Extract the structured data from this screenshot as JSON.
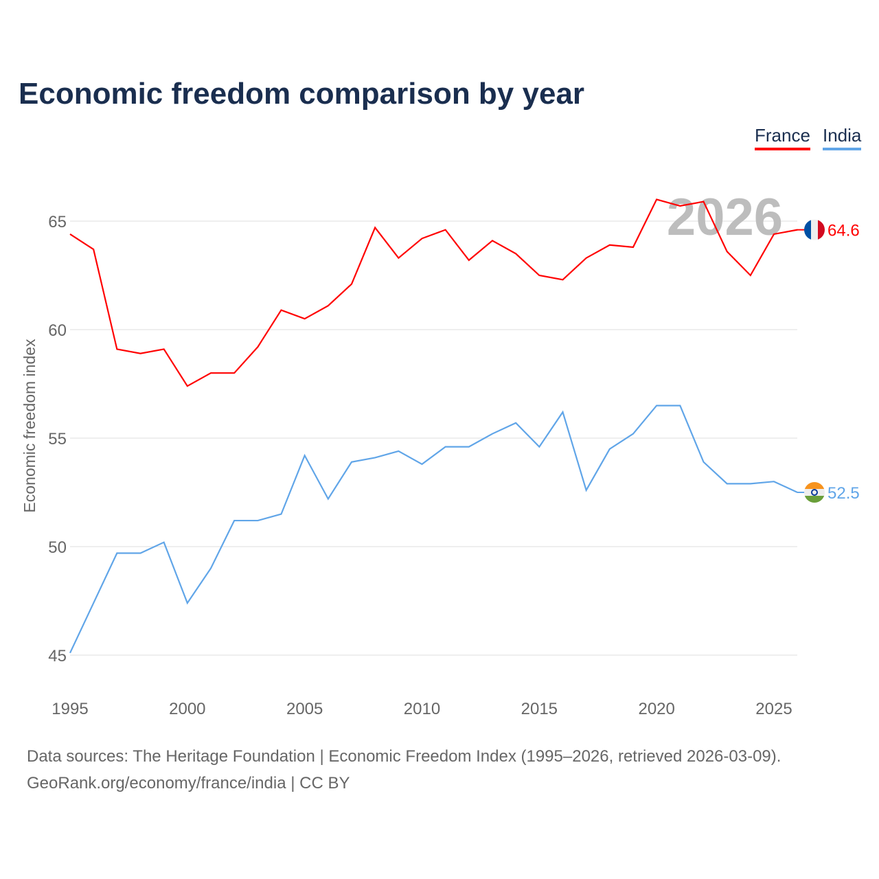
{
  "chart_data": {
    "type": "line",
    "title": "Economic freedom comparison by year",
    "ylabel": "Economic freedom index",
    "xlabel": "",
    "ylim": [
      45,
      67.5
    ],
    "xlim": [
      1995,
      2026
    ],
    "yticks": [
      45,
      50,
      55,
      60,
      65
    ],
    "xticks": [
      1995,
      2000,
      2005,
      2010,
      2015,
      2020,
      2025
    ],
    "grid": true,
    "legend_position": "top-right",
    "year_label": "2026",
    "x": [
      1995,
      1996,
      1997,
      1998,
      1999,
      2000,
      2001,
      2002,
      2003,
      2004,
      2005,
      2006,
      2007,
      2008,
      2009,
      2010,
      2011,
      2012,
      2013,
      2014,
      2015,
      2016,
      2017,
      2018,
      2019,
      2020,
      2021,
      2022,
      2023,
      2024,
      2025,
      2026
    ],
    "series": [
      {
        "name": "France",
        "color": "#ff0000",
        "end_label": "64.6",
        "values": [
          64.4,
          63.7,
          59.1,
          58.9,
          59.1,
          57.4,
          58.0,
          58.0,
          59.2,
          60.9,
          60.5,
          61.1,
          62.1,
          64.7,
          63.3,
          64.2,
          64.6,
          63.2,
          64.1,
          63.5,
          62.5,
          62.3,
          63.3,
          63.9,
          63.8,
          66.0,
          65.7,
          65.9,
          63.6,
          62.5,
          64.4,
          64.6
        ]
      },
      {
        "name": "India",
        "color": "#60a5e8",
        "end_label": "52.5",
        "values": [
          45.1,
          47.4,
          49.7,
          49.7,
          50.2,
          47.4,
          49.0,
          51.2,
          51.2,
          51.5,
          54.2,
          52.2,
          53.9,
          54.1,
          54.4,
          53.8,
          54.6,
          54.6,
          55.2,
          55.7,
          54.6,
          56.2,
          52.6,
          54.5,
          55.2,
          56.5,
          56.5,
          53.9,
          52.9,
          52.9,
          53.0,
          52.5
        ]
      }
    ]
  },
  "footer": {
    "line1": "Data sources: The Heritage Foundation | Economic Freedom Index (1995–2026, retrieved 2026-03-09).",
    "line2": "GeoRank.org/economy/france/india | CC BY"
  }
}
